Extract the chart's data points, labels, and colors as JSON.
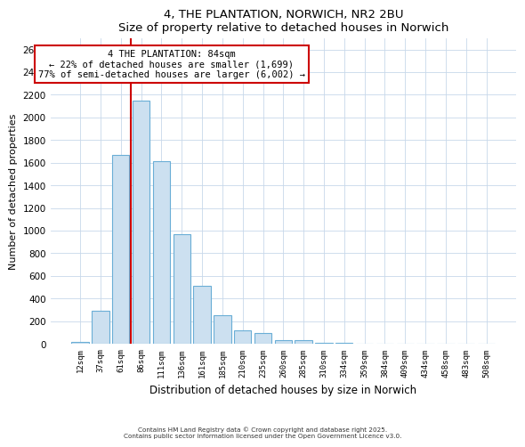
{
  "title": "4, THE PLANTATION, NORWICH, NR2 2BU",
  "subtitle": "Size of property relative to detached houses in Norwich",
  "xlabel": "Distribution of detached houses by size in Norwich",
  "ylabel": "Number of detached properties",
  "bar_labels": [
    "12sqm",
    "37sqm",
    "61sqm",
    "86sqm",
    "111sqm",
    "136sqm",
    "161sqm",
    "185sqm",
    "210sqm",
    "235sqm",
    "260sqm",
    "285sqm",
    "310sqm",
    "334sqm",
    "359sqm",
    "384sqm",
    "409sqm",
    "434sqm",
    "458sqm",
    "483sqm",
    "508sqm"
  ],
  "bar_values": [
    15,
    290,
    1670,
    2150,
    1610,
    965,
    510,
    250,
    120,
    95,
    30,
    30,
    10,
    5,
    2,
    2,
    1,
    1,
    1,
    1,
    1
  ],
  "bar_color": "#cce0f0",
  "bar_edge_color": "#6aaed6",
  "vline_color": "#cc0000",
  "ylim": [
    0,
    2700
  ],
  "yticks": [
    0,
    200,
    400,
    600,
    800,
    1000,
    1200,
    1400,
    1600,
    1800,
    2000,
    2200,
    2400,
    2600
  ],
  "annotation_title": "4 THE PLANTATION: 84sqm",
  "annotation_line1": "← 22% of detached houses are smaller (1,699)",
  "annotation_line2": "77% of semi-detached houses are larger (6,002) →",
  "annotation_box_color": "#ffffff",
  "annotation_box_edge": "#cc0000",
  "footnote1": "Contains HM Land Registry data © Crown copyright and database right 2025.",
  "footnote2": "Contains public sector information licensed under the Open Government Licence v3.0.",
  "background_color": "#ffffff",
  "grid_color": "#c8d8ea"
}
